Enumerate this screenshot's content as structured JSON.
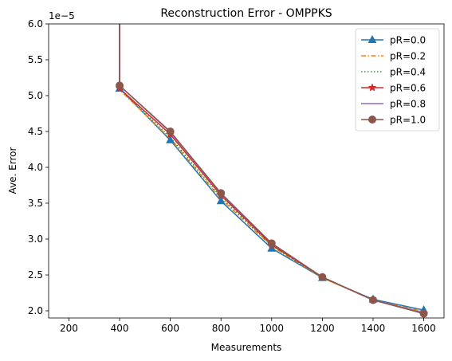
{
  "chart_data": {
    "type": "line",
    "title": "Reconstruction Error - OMPPKS",
    "xlabel": "Measurements",
    "ylabel": "Ave. Error",
    "y_multiplier_label": "1e−5",
    "xlim": [
      120,
      1680
    ],
    "ylim": [
      1.9,
      6.0
    ],
    "xticks": [
      200,
      400,
      600,
      800,
      1000,
      1200,
      1400,
      1600
    ],
    "xtick_labels": [
      "200",
      "400",
      "600",
      "800",
      "1000",
      "1200",
      "1400",
      "1600"
    ],
    "yticks": [
      2.0,
      2.5,
      3.0,
      3.5,
      4.0,
      4.5,
      5.0,
      5.5,
      6.0
    ],
    "ytick_labels": [
      "2.0",
      "2.5",
      "3.0",
      "3.5",
      "4.0",
      "4.5",
      "5.0",
      "5.5",
      "6.0"
    ],
    "legend_position": "top-right",
    "series": [
      {
        "name": "pR=0.0",
        "color": "#1f77b4",
        "linestyle": "solid",
        "marker": "triangle",
        "x": [
          400,
          600,
          800,
          1000,
          1200,
          1400,
          1600
        ],
        "values": [
          5.1,
          4.38,
          3.53,
          2.87,
          2.46,
          2.16,
          2.01
        ]
      },
      {
        "name": "pR=0.2",
        "color": "#ff7f0e",
        "linestyle": "dashdot",
        "marker": "none",
        "x": [
          400,
          600,
          800,
          1000,
          1200,
          1400,
          1600
        ],
        "values": [
          5.08,
          4.4,
          3.56,
          2.9,
          2.46,
          2.15,
          1.99
        ]
      },
      {
        "name": "pR=0.4",
        "color": "#2ca02c",
        "linestyle": "dotted",
        "marker": "none",
        "x": [
          400,
          600,
          800,
          1000,
          1200,
          1400,
          1600
        ],
        "values": [
          5.1,
          4.42,
          3.58,
          2.91,
          2.46,
          2.15,
          1.98
        ]
      },
      {
        "name": "pR=0.6",
        "color": "#d62728",
        "linestyle": "solid",
        "marker": "star",
        "x": [
          400,
          600,
          800,
          1000,
          1200,
          1400,
          1600
        ],
        "values": [
          5.1,
          4.46,
          3.61,
          2.92,
          2.47,
          2.15,
          1.97
        ]
      },
      {
        "name": "pR=0.8",
        "color": "#9467bd",
        "linestyle": "solid",
        "marker": "none",
        "x": [
          400,
          600,
          800,
          1000,
          1200,
          1400,
          1600
        ],
        "values": [
          5.14,
          4.49,
          3.63,
          2.94,
          2.47,
          2.15,
          1.97
        ]
      },
      {
        "name": "pR=1.0",
        "color": "#8c564b",
        "linestyle": "solid",
        "marker": "circle",
        "x": [
          400,
          600,
          800,
          1000,
          1200,
          1400,
          1600
        ],
        "values": [
          5.14,
          4.5,
          3.64,
          2.94,
          2.47,
          2.15,
          1.96
        ]
      }
    ]
  }
}
